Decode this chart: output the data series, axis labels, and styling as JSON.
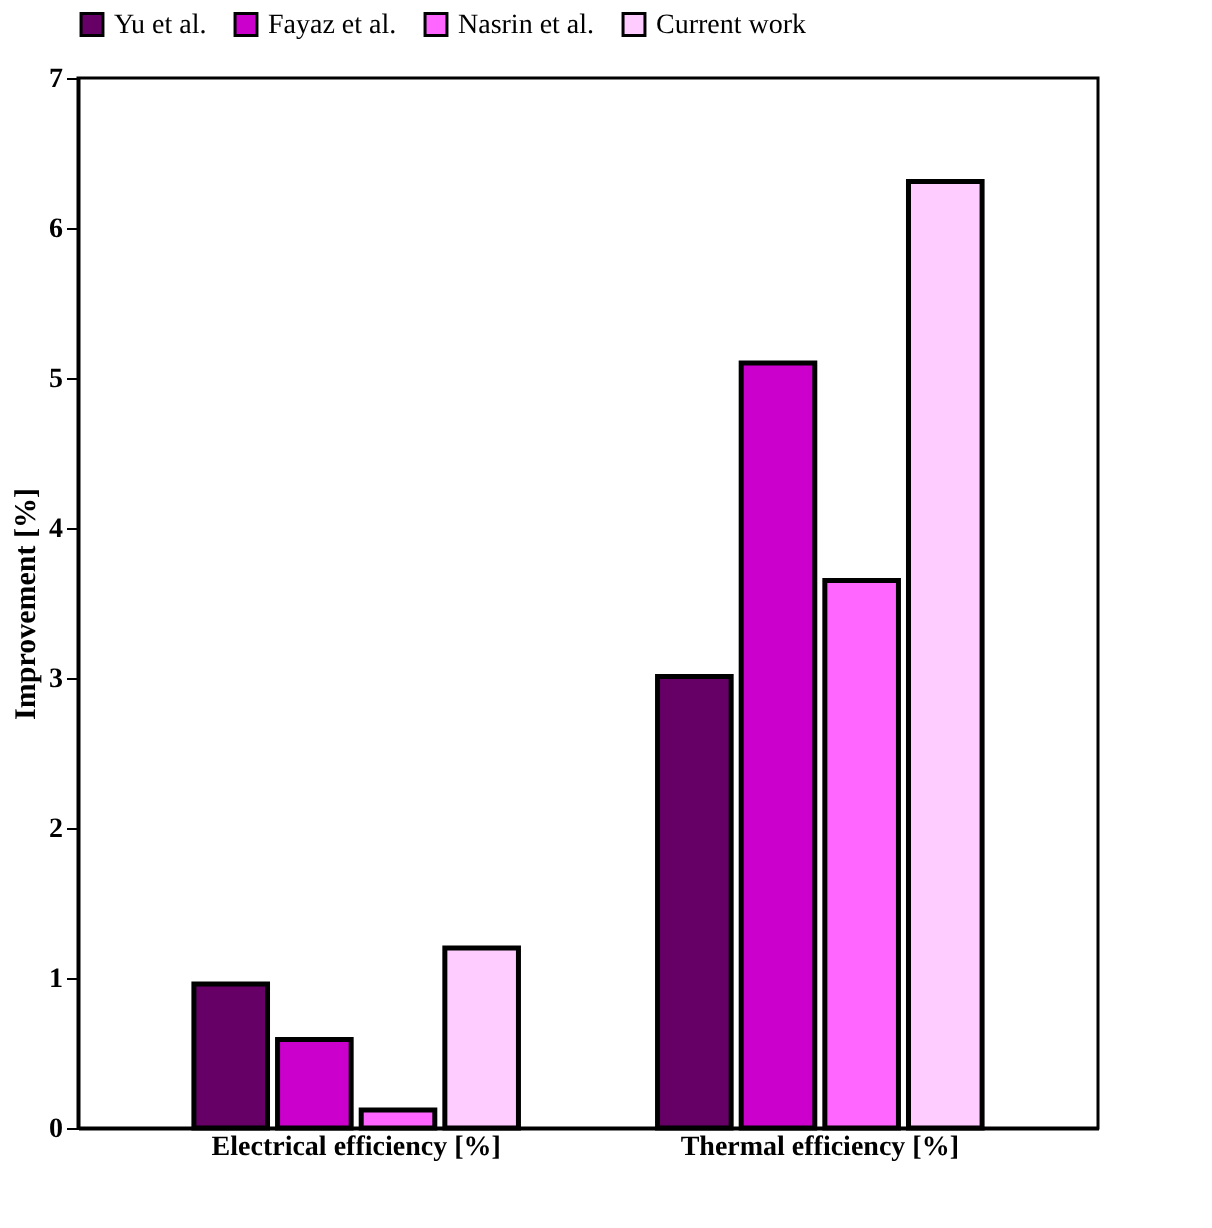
{
  "chart_data": {
    "type": "bar",
    "ylabel": "Improvement [%]",
    "categories": [
      "Electrical efficiency [%]",
      "Thermal efficiency [%]"
    ],
    "series": [
      {
        "name": "Yu et al.",
        "color": "#660066",
        "values": [
          0.96,
          3.01
        ]
      },
      {
        "name": "Fayaz et al.",
        "color": "#cc00cc",
        "values": [
          0.59,
          5.1
        ]
      },
      {
        "name": "Nasrin et al.",
        "color": "#ff66ff",
        "values": [
          0.12,
          3.65
        ]
      },
      {
        "name": "Current work",
        "color": "#ffccff",
        "values": [
          1.2,
          6.31
        ]
      }
    ],
    "ylim": [
      0,
      7
    ],
    "yticks": [
      0,
      1,
      2,
      3,
      4,
      5,
      6,
      7
    ],
    "grid": false,
    "legend": "top"
  }
}
